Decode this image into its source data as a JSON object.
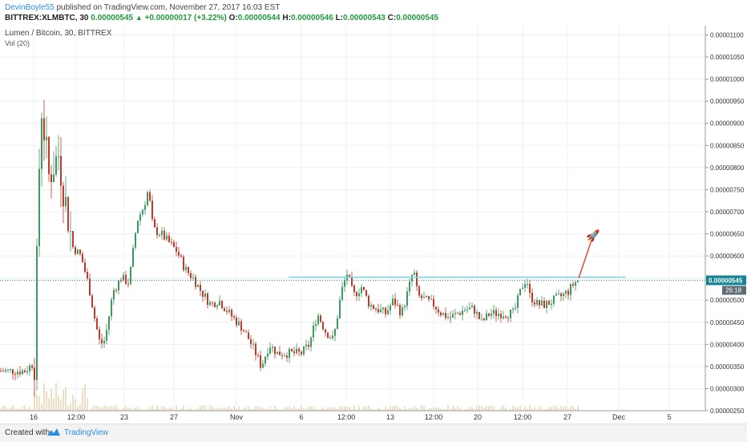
{
  "header": {
    "user": "DevinBoyle55",
    "published": " published on TradingView.com, November 27, 2017 16:03 EST",
    "symbol": "BITTREX:XLMBTC, 30",
    "last": "0.00000545",
    "change": "+0.00000017 (+3.22%)",
    "o_label": "O:",
    "o_val": "0.00000544",
    "h_label": "H:",
    "h_val": "0.00000546",
    "l_label": "L:",
    "l_val": "0.00000543",
    "c_label": "C:",
    "c_val": "0.00000545"
  },
  "legend": {
    "title": "Lumen / Bitcoin, 30, BITTREX",
    "vol": "Vol (20)"
  },
  "price_tag": {
    "value": "0.00000545",
    "timer": "26:18"
  },
  "footer": {
    "created": "Created with",
    "brand": "TradingView"
  },
  "colors": {
    "up": "#3c9a5f",
    "down": "#c0392b",
    "line": "#7fd3e3",
    "arrow": "#e5483f",
    "volume": "#e8d7b8",
    "tag": "#138496"
  },
  "icons": [
    "rocket-icon",
    "tradingview-logo-icon",
    "triangle-up-icon"
  ],
  "chart_data": {
    "type": "candlestick",
    "title": "Lumen / Bitcoin, 30, BITTREX",
    "ylim": [
      2.5e-06,
      1.11e-05
    ],
    "yticks": [
      "0.00000250",
      "0.00000300",
      "0.00000350",
      "0.00000400",
      "0.00000450",
      "0.00000500",
      "0.00000550",
      "0.00000600",
      "0.00000650",
      "0.00000700",
      "0.00000750",
      "0.00000800",
      "0.00000850",
      "0.00000900",
      "0.00000950",
      "0.00001000",
      "0.00001050",
      "0.00001100"
    ],
    "xticks": [
      "16",
      "12:00",
      "23",
      "27",
      "Nov",
      "6",
      "12:00",
      "13",
      "12:00",
      "20",
      "12:00",
      "27",
      "Dec",
      "5"
    ],
    "xtick_index": [
      42,
      95,
      155,
      217,
      295,
      376,
      432,
      487,
      541,
      596,
      652,
      708,
      772,
      835
    ],
    "series": [
      {
        "x": [
          0,
          30,
          42,
          50,
          60,
          72,
          80,
          90,
          100,
          110,
          118,
          124,
          130,
          140,
          150,
          160,
          170,
          178,
          184,
          190,
          200,
          210,
          220,
          230,
          240,
          250,
          262,
          272,
          285,
          300,
          310,
          318,
          325,
          335,
          345,
          355,
          365,
          375,
          385,
          395,
          405,
          415,
          425,
          432,
          440,
          450,
          460,
          470,
          480,
          490,
          500,
          508,
          515,
          520,
          530,
          540,
          550,
          560,
          570,
          580,
          590,
          600,
          610,
          620,
          630,
          640,
          650,
          656,
          660,
          670,
          680,
          690,
          700,
          708,
          712,
          716,
          720
        ],
        "y": [
          3.4e-06,
          3.4e-06,
          3.6e-06,
          9.5e-06,
          7.8e-06,
          8.3e-06,
          7.3e-06,
          6.2e-06,
          6e-06,
          5.3e-06,
          4.5e-06,
          4e-06,
          4.1e-06,
          5.2e-06,
          5.5e-06,
          5.4e-06,
          6.8e-06,
          7.1e-06,
          7.5e-06,
          6.6e-06,
          6.5e-06,
          6.3e-06,
          6.1e-06,
          5.7e-06,
          5.5e-06,
          5.2e-06,
          4.9e-06,
          5e-06,
          4.7e-06,
          4.4e-06,
          4.1e-06,
          3.8e-06,
          3.5e-06,
          4e-06,
          3.8e-06,
          3.8e-06,
          3.8e-06,
          3.8e-06,
          4e-06,
          4.7e-06,
          4.3e-06,
          4.1e-06,
          5.2e-06,
          5.6e-06,
          5.1e-06,
          5.3e-06,
          4.9e-06,
          4.8e-06,
          4.7e-06,
          5e-06,
          4.7e-06,
          5.2e-06,
          5.7e-06,
          5.1e-06,
          5e-06,
          4.9e-06,
          4.7e-06,
          4.6e-06,
          4.7e-06,
          4.8e-06,
          4.8e-06,
          4.5e-06,
          4.7e-06,
          4.7e-06,
          4.7e-06,
          4.7e-06,
          5.3e-06,
          5.5e-06,
          5.1e-06,
          4.9e-06,
          4.9e-06,
          5e-06,
          5.1e-06,
          5.2e-06,
          5.3e-06,
          5.4e-06,
          5.45e-06
        ]
      }
    ],
    "resistance_line": {
      "y": 5.52e-06,
      "x_start": 360,
      "x_end": 780
    },
    "last_price_line": {
      "y": 5.45e-06
    },
    "projection": {
      "from_x": 722,
      "from_y": 5.5e-06,
      "to_x": 738,
      "to_y": 6.5e-06
    }
  }
}
